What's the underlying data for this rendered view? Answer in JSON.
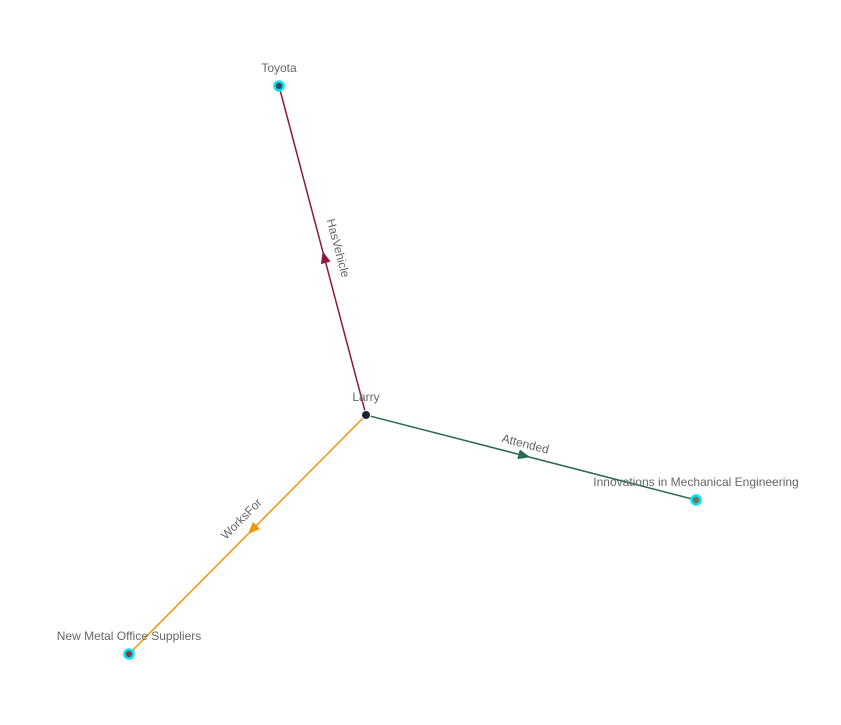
{
  "graph": {
    "node_ring_color": "#00e5ee",
    "nodes": [
      {
        "id": "larry",
        "label": "Larry",
        "color": "#1c2433"
      },
      {
        "id": "toyota",
        "label": "Toyota",
        "color": "#3a4660"
      },
      {
        "id": "innov",
        "label": "Innovations in Mechanical Engineering",
        "color": "#7a6e58"
      },
      {
        "id": "nmos",
        "label": "New Metal Office Suppliers",
        "color": "#7a4444"
      }
    ],
    "edges": [
      {
        "from": "larry",
        "to": "toyota",
        "label": "HasVehicle",
        "color": "#8b1a3f"
      },
      {
        "from": "larry",
        "to": "innov",
        "label": "Attended",
        "color": "#2b6a52"
      },
      {
        "from": "larry",
        "to": "nmos",
        "label": "WorksFor",
        "color": "#f0960a"
      }
    ]
  }
}
